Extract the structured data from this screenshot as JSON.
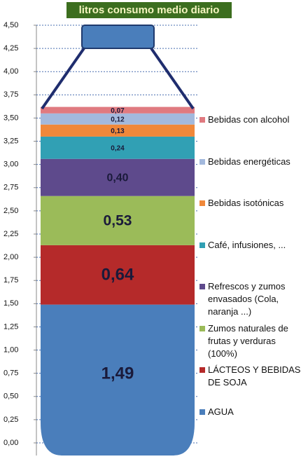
{
  "chart_data": {
    "type": "bar",
    "stacked": true,
    "title": "litros consumo medio diario",
    "categories": [
      null
    ],
    "series": [
      {
        "name": "AGUA",
        "color": "#4a7ebb",
        "values": [
          1.49
        ],
        "value_labels": [
          "1,49"
        ]
      },
      {
        "name": "LÁCTEOS Y BEBIDAS DE SOJA",
        "color": "#b52a2a",
        "values": [
          0.64
        ],
        "value_labels": [
          "0,64"
        ]
      },
      {
        "name": "Zumos naturales de frutas y verduras (100%)",
        "color": "#9bbb59",
        "values": [
          0.53
        ],
        "value_labels": [
          "0,53"
        ]
      },
      {
        "name": "Refrescos y zumos envasados (Cola, naranja ...)",
        "color": "#5e4a8c",
        "values": [
          0.4
        ],
        "value_labels": [
          "0,40"
        ]
      },
      {
        "name": "Café, infusiones, ...",
        "color": "#31a0b4",
        "values": [
          0.24
        ],
        "value_labels": [
          "0,24"
        ]
      },
      {
        "name": "Bebidas isotónicas",
        "color": "#f0883a",
        "values": [
          0.13
        ],
        "value_labels": [
          "0,13"
        ]
      },
      {
        "name": "Bebidas energéticas",
        "color": "#a3b9dd",
        "values": [
          0.12
        ],
        "value_labels": [
          "0,12"
        ]
      },
      {
        "name": "Bebidas con alcohol",
        "color": "#e07a80",
        "values": [
          0.07
        ],
        "value_labels": [
          "0,07"
        ]
      }
    ],
    "ylim": [
      0,
      4.5
    ],
    "yticks": [
      {
        "value": 0,
        "label": "0,00"
      },
      {
        "value": 0.25,
        "label": "0,25"
      },
      {
        "value": 0.5,
        "label": "0,50"
      },
      {
        "value": 0.75,
        "label": "0,75"
      },
      {
        "value": 1,
        "label": "1,00"
      },
      {
        "value": 1.25,
        "label": "1,25"
      },
      {
        "value": 1.5,
        "label": "1,50"
      },
      {
        "value": 1.75,
        "label": "1,75"
      },
      {
        "value": 2,
        "label": "2,00"
      },
      {
        "value": 2.25,
        "label": "2,25"
      },
      {
        "value": 2.5,
        "label": "2,50"
      },
      {
        "value": 2.75,
        "label": "2,75"
      },
      {
        "value": 3,
        "label": "3,00"
      },
      {
        "value": 3.25,
        "label": "3,25"
      },
      {
        "value": 3.5,
        "label": "3,50"
      },
      {
        "value": 3.75,
        "label": "3,75"
      },
      {
        "value": 4,
        "label": "4,00"
      },
      {
        "value": 4.25,
        "label": "4,25"
      },
      {
        "value": 4.5,
        "label": "4,50"
      }
    ],
    "grid": true,
    "legend": "right"
  }
}
